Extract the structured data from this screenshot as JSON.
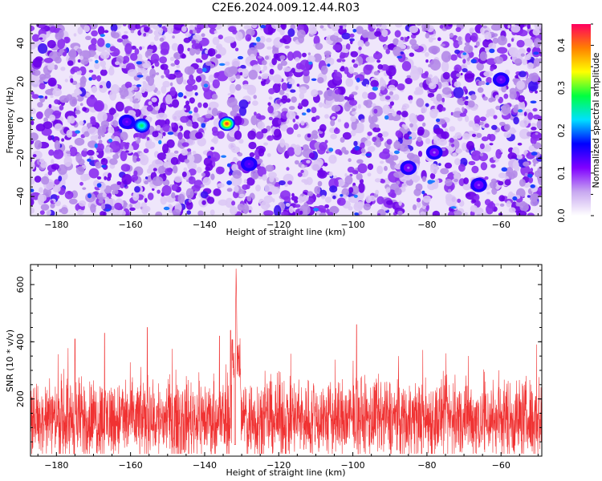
{
  "figure_title": "C2E6.2024.009.12.44.R03",
  "chart_data": [
    {
      "type": "heatmap",
      "title": "",
      "xlabel": "Height of straight line (km)",
      "ylabel": "Frequency (Hz)",
      "xlim": [
        -187,
        -49
      ],
      "ylim": [
        -50,
        50
      ],
      "x_ticks": [
        -180,
        -160,
        -140,
        -120,
        -100,
        -80,
        -60
      ],
      "y_ticks": [
        -40,
        -20,
        0,
        20,
        40
      ],
      "colorbar": {
        "label": "Normalized spectral amplitude",
        "range": [
          0,
          0.45
        ],
        "ticks": [
          0.0,
          0.1,
          0.2,
          0.3,
          0.4
        ],
        "colormap": [
          "#ffffff",
          "#c8a8f0",
          "#8000ff",
          "#0000ff",
          "#00e0ff",
          "#00ff40",
          "#ffff00",
          "#ff8000",
          "#ff0060"
        ]
      },
      "peaks": [
        {
          "x": -134,
          "y": -2,
          "value": 0.42
        },
        {
          "x": -157,
          "y": -3,
          "value": 0.27
        },
        {
          "x": -128,
          "y": -23,
          "value": 0.12
        },
        {
          "x": -161,
          "y": -1,
          "value": 0.11
        },
        {
          "x": -60,
          "y": 21,
          "value": 0.1
        },
        {
          "x": -66,
          "y": -34,
          "value": 0.09
        },
        {
          "x": -78,
          "y": -17,
          "value": 0.08
        },
        {
          "x": -85,
          "y": -25,
          "value": 0.08
        }
      ],
      "gap_x": -134.5
    },
    {
      "type": "line",
      "title": "",
      "xlabel": "Height of straight line (km)",
      "ylabel": "SNR (10 * v/v)",
      "xlim": [
        -187,
        -49
      ],
      "ylim": [
        0,
        670
      ],
      "x_ticks": [
        -180,
        -160,
        -140,
        -120,
        -100,
        -80,
        -60
      ],
      "y_ticks": [
        200,
        400,
        600
      ],
      "color": "#f03232",
      "baseline": 130,
      "noise_amplitude": 140,
      "peak": {
        "x": -131.5,
        "y": 670
      },
      "secondary_peaks": [
        {
          "x": -155.5,
          "y": 450
        },
        {
          "x": -99,
          "y": 460
        },
        {
          "x": -167,
          "y": 430
        },
        {
          "x": -175,
          "y": 410
        },
        {
          "x": -136,
          "y": 420
        },
        {
          "x": -133,
          "y": 440
        }
      ],
      "dip": {
        "x": -131.8,
        "y": 40
      }
    }
  ]
}
